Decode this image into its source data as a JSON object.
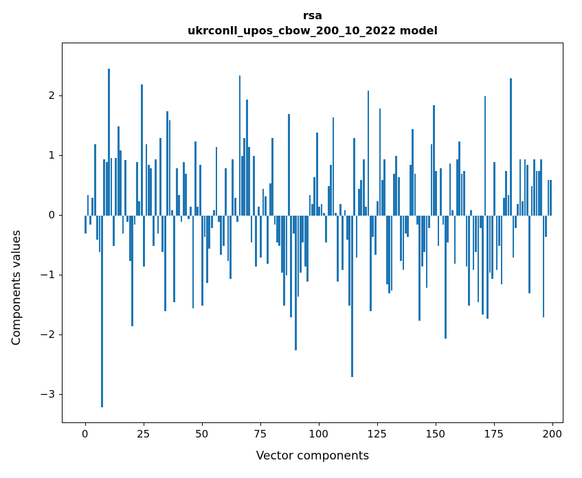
{
  "title": {
    "line1": "rsa",
    "line2": "ukrconll_upos_cbow_200_10_2022 model"
  },
  "chart_data": {
    "type": "bar",
    "title": "rsa\nukrconll_upos_cbow_200_10_2022 model",
    "xlabel": "Vector components",
    "ylabel": "Components values",
    "legend": "none",
    "grid": false,
    "bar_color": "#1f77b4",
    "axis_color": "#000000",
    "background_color": "#ffffff",
    "bar_width_data_units": 0.8,
    "xlim": [
      -9.88,
      204.8
    ],
    "ylim": [
      -3.48,
      2.89
    ],
    "xticks": [
      0,
      25,
      50,
      75,
      100,
      125,
      150,
      175,
      200
    ],
    "yticks": [
      2,
      1,
      0,
      -1,
      -2,
      -3
    ],
    "categories_note": "x = vector component index 0..199",
    "values": [
      -0.3,
      0.35,
      -0.15,
      0.3,
      1.2,
      -0.4,
      -0.6,
      -3.2,
      0.95,
      0.9,
      2.47,
      0.97,
      -0.5,
      0.97,
      1.5,
      1.1,
      -0.3,
      0.94,
      -0.1,
      -0.75,
      -1.85,
      -0.15,
      0.9,
      0.25,
      2.2,
      -0.85,
      1.2,
      0.85,
      0.8,
      -0.5,
      0.95,
      -0.3,
      1.3,
      -0.6,
      -1.6,
      1.75,
      1.6,
      0.1,
      -1.45,
      0.8,
      0.35,
      -0.1,
      0.9,
      0.7,
      -0.05,
      0.15,
      -1.55,
      1.25,
      0.15,
      0.85,
      -1.5,
      -0.35,
      -1.12,
      -0.55,
      -0.2,
      0.1,
      1.15,
      -0.1,
      -0.65,
      -0.5,
      0.8,
      -0.75,
      -1.05,
      0.95,
      0.3,
      -0.1,
      2.35,
      1.0,
      1.3,
      1.95,
      1.15,
      -0.45,
      1.0,
      -0.85,
      0.15,
      -0.7,
      0.45,
      0.33,
      -0.8,
      0.55,
      1.3,
      -0.15,
      -0.45,
      -0.5,
      -0.95,
      -1.5,
      -1.0,
      1.7,
      -1.7,
      -0.3,
      -2.25,
      -1.35,
      -0.95,
      -0.45,
      -0.85,
      -1.1,
      0.35,
      0.2,
      0.65,
      1.4,
      0.15,
      0.2,
      0.05,
      -0.45,
      0.5,
      0.85,
      1.65,
      0.05,
      -1.1,
      0.2,
      -0.9,
      0.1,
      -0.4,
      -1.5,
      -2.7,
      1.3,
      -0.7,
      0.45,
      0.6,
      0.95,
      0.15,
      2.1,
      -1.6,
      -0.35,
      -0.65,
      0.25,
      1.8,
      0.6,
      0.95,
      -1.15,
      -1.3,
      -1.25,
      0.7,
      1.0,
      0.65,
      -0.75,
      -0.9,
      -0.3,
      -0.35,
      0.85,
      1.45,
      0.7,
      -0.15,
      -1.75,
      -0.85,
      -0.6,
      -1.2,
      -0.2,
      1.2,
      1.85,
      0.75,
      -0.5,
      0.8,
      -0.15,
      -2.05,
      -0.45,
      0.88,
      0.1,
      -0.8,
      0.95,
      1.25,
      0.7,
      0.75,
      -0.85,
      -1.5,
      0.1,
      -0.9,
      -0.6,
      -1.45,
      -0.2,
      -1.65,
      2.0,
      -1.72,
      -0.95,
      -1.05,
      0.9,
      -0.9,
      -0.5,
      -1.15,
      0.3,
      0.75,
      0.35,
      2.3,
      -0.7,
      -0.2,
      0.2,
      0.95,
      0.25,
      0.95,
      0.85,
      -1.3,
      0.5,
      0.95,
      0.75,
      0.75,
      0.95,
      -1.7,
      -0.35,
      0.6,
      0.6
    ]
  }
}
